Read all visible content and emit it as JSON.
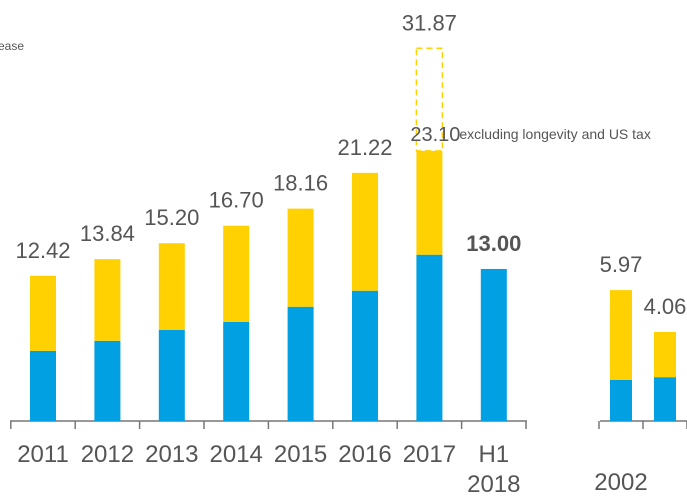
{
  "chart_data": [
    {
      "type": "stacked-bar",
      "annotation": "ease",
      "categories": [
        "2011",
        "2012",
        "2013",
        "2014",
        "2015",
        "2016",
        "2017",
        [
          "H1",
          "2018"
        ]
      ],
      "series": [
        {
          "color": "#00a0e2",
          "values": [
            6.0,
            6.86,
            7.8,
            8.48,
            9.77,
            11.14,
            14.22,
            13.0
          ]
        },
        {
          "color": "#ffd100",
          "values": [
            6.42,
            6.98,
            7.4,
            8.22,
            8.39,
            10.08,
            8.88,
            null
          ]
        },
        {
          "color": "#ffd100",
          "dashed": true,
          "values": [
            null,
            null,
            null,
            null,
            null,
            null,
            8.77,
            null
          ]
        }
      ],
      "value_labels": [
        "12.42",
        "13.84",
        "15.20",
        "16.70",
        "18.16",
        "21.22",
        "31.87",
        "13.00"
      ],
      "totals": [
        12.42,
        13.84,
        15.2,
        16.7,
        18.16,
        21.22,
        31.87,
        13.0
      ],
      "callout": {
        "value": 23.1,
        "label": "23.10",
        "text": "excluding longevity and US tax"
      },
      "ylim": [
        0,
        36
      ]
    },
    {
      "type": "stacked-bar",
      "categories": [
        "2002",
        null
      ],
      "series": [
        {
          "color": "#00a0e2",
          "values": [
            1.87,
            2.0
          ]
        },
        {
          "color": "#ffd100",
          "values": [
            4.1,
            2.06
          ]
        }
      ],
      "value_labels": [
        "5.97",
        "4.06"
      ],
      "totals": [
        5.97,
        4.06
      ],
      "ylim": [
        0,
        19.2
      ]
    }
  ]
}
